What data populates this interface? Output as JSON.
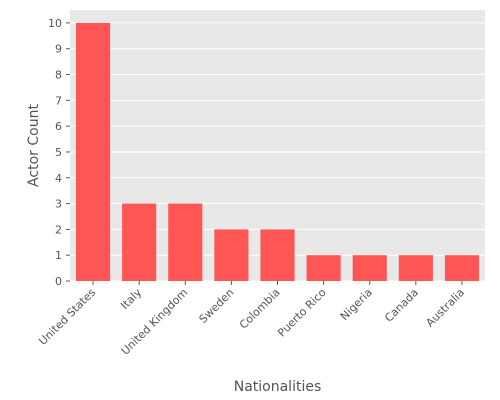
{
  "chart_data": {
    "type": "bar",
    "categories": [
      "United States",
      "Italy",
      "United Kingdom",
      "Sweden",
      "Colombia",
      "Puerto Rico",
      "Nigeria",
      "Canada",
      "Australia"
    ],
    "values": [
      10,
      3,
      3,
      2,
      2,
      1,
      1,
      1,
      1
    ],
    "xlabel": "Nationalities",
    "ylabel": "Actor Count",
    "ylim": [
      0,
      10.5
    ],
    "yticks": [
      0,
      1,
      2,
      3,
      4,
      5,
      6,
      7,
      8,
      9,
      10
    ],
    "grid": true,
    "bar_color": "#ff5555",
    "background_color": "#e8e8e8",
    "grid_color": "#ffffff"
  }
}
